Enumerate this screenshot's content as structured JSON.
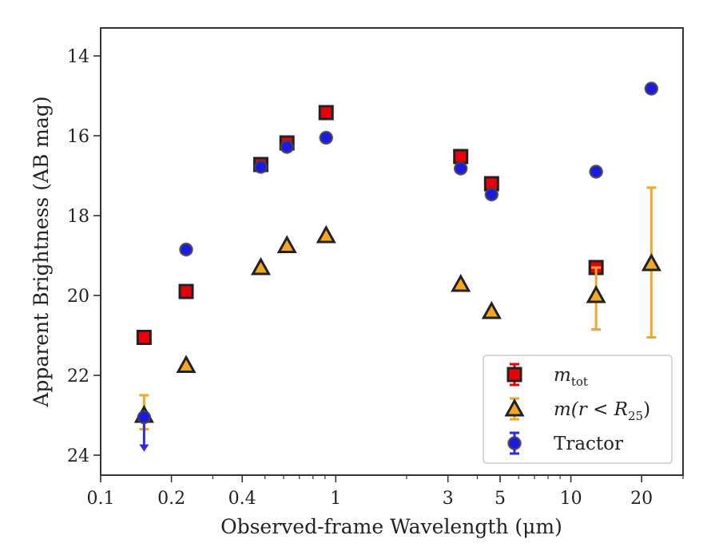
{
  "chart_data": {
    "type": "scatter",
    "xlabel": "Observed-frame Wavelength (μm)",
    "ylabel": "Apparent Brightness (AB mag)",
    "xscale": "log",
    "xlim": [
      0.1,
      30
    ],
    "ylim": [
      24.5,
      13.3
    ],
    "y_inverted": true,
    "xticks": [
      {
        "value": 0.1,
        "label": "0.1"
      },
      {
        "value": 0.2,
        "label": "0.2"
      },
      {
        "value": 0.4,
        "label": "0.4"
      },
      {
        "value": 1,
        "label": "1"
      },
      {
        "value": 3,
        "label": "3"
      },
      {
        "value": 5,
        "label": "5"
      },
      {
        "value": 10,
        "label": "10"
      },
      {
        "value": 20,
        "label": "20"
      }
    ],
    "yticks": [
      {
        "value": 14,
        "label": "14"
      },
      {
        "value": 16,
        "label": "16"
      },
      {
        "value": 18,
        "label": "18"
      },
      {
        "value": 20,
        "label": "20"
      },
      {
        "value": 22,
        "label": "22"
      },
      {
        "value": 24,
        "label": "24"
      }
    ],
    "legend_position": "lower-right",
    "grid": false,
    "series": [
      {
        "key": "mtot",
        "legend_main": "m",
        "legend_sub": "tot",
        "legend_suffix": "",
        "marker": "square",
        "fill": "#e8000b",
        "edge": "#222222",
        "errcolor": "#e8000b",
        "points": [
          {
            "x": 0.153,
            "y": 21.05
          },
          {
            "x": 0.231,
            "y": 19.9
          },
          {
            "x": 0.48,
            "y": 16.72
          },
          {
            "x": 0.62,
            "y": 16.18
          },
          {
            "x": 0.91,
            "y": 15.42
          },
          {
            "x": 3.4,
            "y": 16.52
          },
          {
            "x": 4.6,
            "y": 17.2
          },
          {
            "x": 12.8,
            "y": 19.3
          }
        ]
      },
      {
        "key": "mr25",
        "legend_main": "m(r < R",
        "legend_sub": "25",
        "legend_suffix": ")",
        "marker": "triangle",
        "fill": "#f5a623",
        "edge": "#222222",
        "errcolor": "#f5a623",
        "points": [
          {
            "x": 0.153,
            "y": 23.0,
            "yerr": [
              22.5,
              23.35
            ]
          },
          {
            "x": 0.231,
            "y": 21.75
          },
          {
            "x": 0.48,
            "y": 19.3
          },
          {
            "x": 0.62,
            "y": 18.75
          },
          {
            "x": 0.91,
            "y": 18.5
          },
          {
            "x": 3.4,
            "y": 19.72
          },
          {
            "x": 4.6,
            "y": 20.4
          },
          {
            "x": 12.8,
            "y": 20.0,
            "yerr": [
              19.3,
              20.85
            ]
          },
          {
            "x": 22.0,
            "y": 19.2,
            "yerr": [
              17.3,
              21.05
            ]
          }
        ]
      },
      {
        "key": "tractor",
        "legend_main": "Tractor",
        "legend_sub": "",
        "legend_suffix": "",
        "marker": "circle",
        "fill": "#1a1ae6",
        "edge": "#444444",
        "errcolor": "#2a2ae8",
        "points": [
          {
            "x": 0.153,
            "y": 23.05,
            "upper_limit": true
          },
          {
            "x": 0.231,
            "y": 18.85
          },
          {
            "x": 0.48,
            "y": 16.78
          },
          {
            "x": 0.62,
            "y": 16.28
          },
          {
            "x": 0.91,
            "y": 16.05
          },
          {
            "x": 3.4,
            "y": 16.82
          },
          {
            "x": 4.6,
            "y": 17.47
          },
          {
            "x": 12.8,
            "y": 16.9
          },
          {
            "x": 22.0,
            "y": 14.82
          }
        ]
      }
    ]
  }
}
